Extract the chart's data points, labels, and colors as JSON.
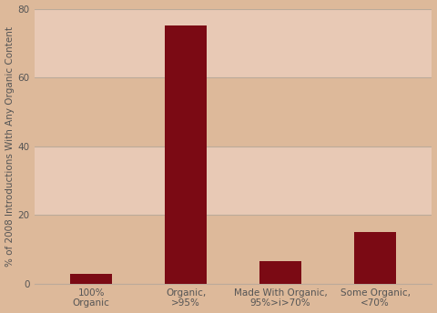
{
  "categories": [
    "100%\nOrganic",
    "Organic,\n>95%",
    "Made With Organic,\n95%>i>70%",
    "Some Organic,\n<70%"
  ],
  "values": [
    3,
    75,
    6.5,
    15
  ],
  "bar_color": "#7b0a14",
  "background_color": "#ddb99a",
  "plot_bg_color": "#e8c9b5",
  "plot_bg_alt": "#ddb99a",
  "ylabel": "% of 2008 Introductions With Any Organic Content",
  "ylim": [
    0,
    80
  ],
  "yticks": [
    0,
    20,
    40,
    60,
    80
  ],
  "grid_color": "#bbaa9a",
  "bar_width": 0.45,
  "tick_label_fontsize": 7.5,
  "ylabel_fontsize": 7.5
}
